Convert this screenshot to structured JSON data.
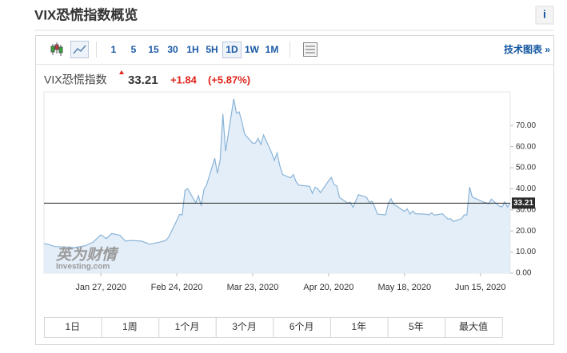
{
  "header": {
    "title": "VIX恐慌指数概览",
    "info": "i"
  },
  "toolbar": {
    "intervals": [
      "1",
      "5",
      "15",
      "30",
      "1H",
      "5H",
      "1D",
      "1W",
      "1M"
    ],
    "selected_interval": "1D",
    "link": "技术图表 »"
  },
  "quote": {
    "name": "VIX恐慌指数",
    "change": "+1.84",
    "change_pct": "(+5.87%)"
  },
  "chart_data": {
    "type": "area",
    "x": [
      "2020-01-06",
      "2020-01-08",
      "2020-01-10",
      "2020-01-14",
      "2020-01-17",
      "2020-01-21",
      "2020-01-24",
      "2020-01-27",
      "2020-01-29",
      "2020-01-31",
      "2020-02-03",
      "2020-02-05",
      "2020-02-07",
      "2020-02-11",
      "2020-02-14",
      "2020-02-18",
      "2020-02-20",
      "2020-02-21",
      "2020-02-24",
      "2020-02-25",
      "2020-02-26",
      "2020-02-27",
      "2020-02-28",
      "2020-03-02",
      "2020-03-03",
      "2020-03-04",
      "2020-03-05",
      "2020-03-06",
      "2020-03-09",
      "2020-03-10",
      "2020-03-11",
      "2020-03-12",
      "2020-03-13",
      "2020-03-16",
      "2020-03-17",
      "2020-03-18",
      "2020-03-19",
      "2020-03-20",
      "2020-03-23",
      "2020-03-24",
      "2020-03-25",
      "2020-03-26",
      "2020-03-27",
      "2020-03-30",
      "2020-03-31",
      "2020-04-01",
      "2020-04-02",
      "2020-04-03",
      "2020-04-06",
      "2020-04-07",
      "2020-04-08",
      "2020-04-09",
      "2020-04-13",
      "2020-04-14",
      "2020-04-15",
      "2020-04-16",
      "2020-04-17",
      "2020-04-20",
      "2020-04-21",
      "2020-04-22",
      "2020-04-23",
      "2020-04-24",
      "2020-04-27",
      "2020-04-28",
      "2020-04-29",
      "2020-04-30",
      "2020-05-01",
      "2020-05-04",
      "2020-05-05",
      "2020-05-06",
      "2020-05-07",
      "2020-05-08",
      "2020-05-11",
      "2020-05-12",
      "2020-05-13",
      "2020-05-14",
      "2020-05-15",
      "2020-05-18",
      "2020-05-19",
      "2020-05-20",
      "2020-05-21",
      "2020-05-22",
      "2020-05-26",
      "2020-05-27",
      "2020-05-28",
      "2020-05-29",
      "2020-06-01",
      "2020-06-02",
      "2020-06-03",
      "2020-06-04",
      "2020-06-05",
      "2020-06-08",
      "2020-06-09",
      "2020-06-10",
      "2020-06-11",
      "2020-06-12",
      "2020-06-15",
      "2020-06-16",
      "2020-06-17",
      "2020-06-18",
      "2020-06-19",
      "2020-06-22",
      "2020-06-23",
      "2020-06-24",
      "2020-06-25",
      "2020-06-26"
    ],
    "values": [
      14.0,
      13.5,
      12.6,
      12.4,
      12.1,
      12.9,
      14.6,
      18.2,
      16.4,
      18.8,
      17.97,
      15.2,
      15.5,
      15.2,
      13.7,
      14.8,
      15.6,
      17.1,
      25.0,
      27.9,
      27.6,
      39.2,
      40.1,
      33.4,
      36.8,
      31.99,
      39.6,
      41.9,
      54.5,
      47.3,
      53.9,
      75.5,
      57.8,
      82.7,
      75.9,
      76.5,
      72.0,
      66.0,
      61.6,
      61.7,
      63.9,
      61.0,
      65.5,
      57.1,
      53.5,
      57.1,
      50.9,
      46.8,
      45.2,
      46.7,
      43.4,
      41.7,
      41.2,
      37.8,
      40.8,
      40.1,
      38.2,
      43.8,
      45.4,
      41.98,
      41.4,
      35.9,
      33.3,
      33.6,
      31.2,
      34.2,
      37.2,
      35.97,
      33.6,
      34.1,
      31.4,
      27.98,
      27.6,
      33.0,
      35.3,
      32.6,
      31.9,
      29.3,
      30.5,
      27.99,
      29.5,
      28.2,
      28.0,
      27.6,
      28.6,
      27.5,
      28.2,
      26.8,
      25.7,
      25.8,
      24.5,
      25.8,
      27.6,
      27.6,
      40.8,
      36.1,
      34.4,
      33.7,
      33.5,
      32.9,
      35.1,
      31.8,
      31.4,
      33.8,
      31.37,
      33.21
    ],
    "color": "#8ab4d8",
    "fill": "#e4eef8",
    "last_value": 33.21,
    "xlim": [
      "2020-01-06",
      "2020-06-26"
    ],
    "xticks": [
      {
        "value": "2020-01-27",
        "label": "Jan 27, 2020"
      },
      {
        "value": "2020-02-24",
        "label": "Feb 24, 2020"
      },
      {
        "value": "2020-03-23",
        "label": "Mar 23, 2020"
      },
      {
        "value": "2020-04-20",
        "label": "Apr 20, 2020"
      },
      {
        "value": "2020-05-18",
        "label": "May 18, 2020"
      },
      {
        "value": "2020-06-15",
        "label": "Jun 15, 2020"
      }
    ],
    "ylim": [
      0,
      86
    ],
    "yticks": [
      {
        "value": 0,
        "label": "0.00"
      },
      {
        "value": 10,
        "label": "10.00"
      },
      {
        "value": 20,
        "label": "20.00"
      },
      {
        "value": 30,
        "label": "30.00"
      },
      {
        "value": 40,
        "label": "40.00"
      },
      {
        "value": 50,
        "label": "50.00"
      },
      {
        "value": 60,
        "label": "60.00"
      },
      {
        "value": 70,
        "label": "70.00"
      }
    ],
    "watermark": {
      "brand": "英为财情",
      "site": "Investing.com"
    }
  },
  "ranges": [
    "1日",
    "1周",
    "1个月",
    "3个月",
    "6个月",
    "1年",
    "5年",
    "最大值"
  ]
}
